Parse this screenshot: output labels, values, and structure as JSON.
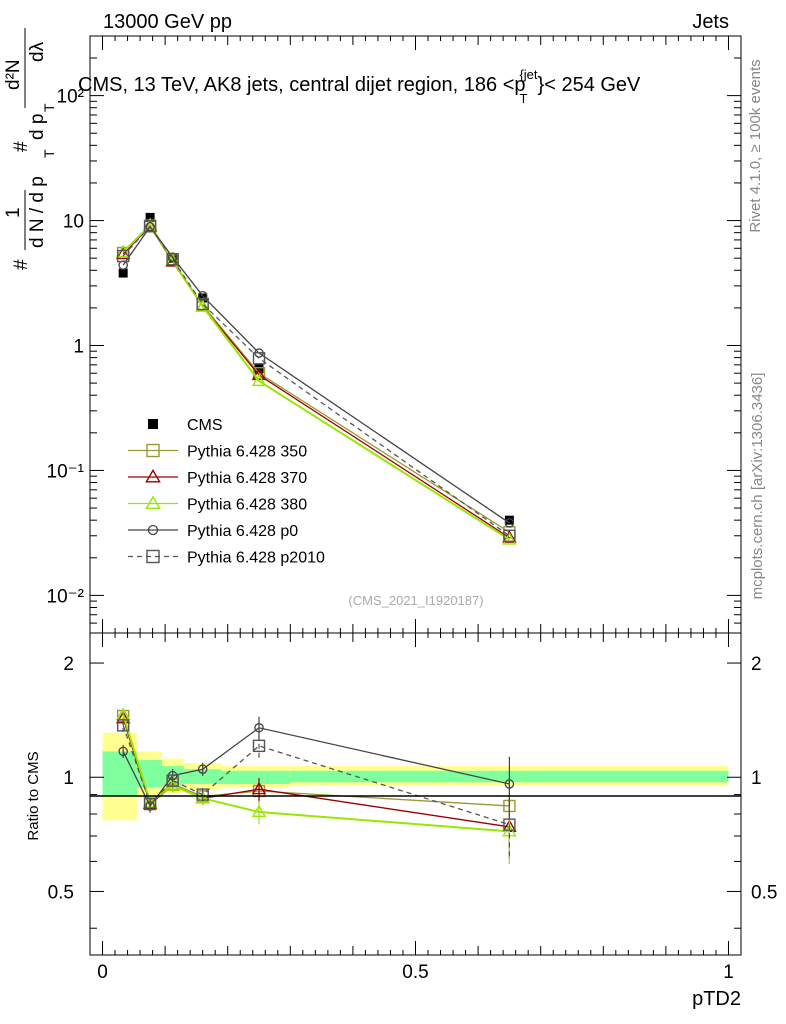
{
  "header": {
    "left": "13000 GeV pp",
    "right": "Jets"
  },
  "side": {
    "rivet": "Rivet 4.1.0, ≥ 100k events",
    "mcplots": "mcplots.cern.ch [arXiv:1306.3436]"
  },
  "colors": {
    "cms": "#000000",
    "p350": "#999933",
    "p370": "#990000",
    "p380": "#99e600",
    "p0": "#444444",
    "p2010": "#555555",
    "band_stat": "#80ff9f",
    "band_total": "#ffff90"
  },
  "chart_data": [
    {
      "type": "scatter",
      "panel": "main",
      "title": "CMS, 13 TeV, AK8 jets, central dijet region, 186 <p_T^{jet}< 254 GeV",
      "title_parts": [
        "CMS, 13 TeV, AK8 jets, central dijet region, 186 <p",
        "T",
        "{jet",
        "}< 254 GeV"
      ],
      "ylabel_parts": [
        "#",
        "1",
        "d N / d p",
        "T",
        "#",
        "d p",
        "T",
        "d²N",
        "dλ"
      ],
      "xlabel": "pTD2",
      "watermark": "(CMS_2021_I1920187)",
      "xlim": [
        -0.02,
        1.02
      ],
      "ylim": [
        0.005,
        300
      ],
      "yscale": "log",
      "ytick_labels": [
        "10⁻²",
        "10⁻¹",
        "1",
        "10",
        "10²"
      ],
      "xtick_labels": [
        "0",
        "0.5",
        "1"
      ],
      "x": [
        0.033,
        0.076,
        0.112,
        0.16,
        0.25,
        0.65
      ],
      "series": [
        {
          "name": "CMS",
          "marker": "filled-square",
          "values": [
            3.8,
            10.6,
            5.0,
            2.4,
            0.65,
            0.04
          ]
        },
        {
          "name": "Pythia 6.428 350",
          "marker": "open-square",
          "line": "solid",
          "values": [
            5.5,
            9.1,
            4.8,
            2.1,
            0.6,
            0.032
          ]
        },
        {
          "name": "Pythia 6.428 370",
          "marker": "open-triangle",
          "line": "solid",
          "values": [
            5.4,
            9.0,
            4.7,
            2.05,
            0.58,
            0.029
          ]
        },
        {
          "name": "Pythia 6.428 380",
          "marker": "open-triangle",
          "line": "solid",
          "values": [
            5.6,
            9.2,
            4.8,
            2.05,
            0.52,
            0.028
          ]
        },
        {
          "name": "Pythia 6.428 p0",
          "marker": "open-circle",
          "line": "solid",
          "values": [
            4.4,
            8.9,
            5.1,
            2.5,
            0.87,
            0.038
          ]
        },
        {
          "name": "Pythia 6.428 p2010",
          "marker": "open-square",
          "line": "dashed",
          "values": [
            5.2,
            9.0,
            4.9,
            2.15,
            0.79,
            0.03
          ]
        }
      ]
    },
    {
      "type": "line",
      "panel": "ratio",
      "ylabel": "Ratio to CMS",
      "xlabel": "pTD2",
      "xlim": [
        -0.02,
        1.02
      ],
      "ylim": [
        0.34,
        2.4
      ],
      "yscale": "log",
      "ytick_labels": [
        "0.5",
        "1",
        "2"
      ],
      "xtick_labels": [
        "0",
        "0.5",
        "1"
      ],
      "x": [
        0.033,
        0.076,
        0.112,
        0.16,
        0.25,
        0.65
      ],
      "band_edges": [
        0.0,
        0.055,
        0.095,
        0.13,
        0.19,
        0.3,
        1.0
      ],
      "stat_band": [
        [
          0.89,
          1.17
        ],
        [
          0.94,
          1.11
        ],
        [
          0.95,
          1.07
        ],
        [
          0.96,
          1.05
        ],
        [
          0.96,
          1.04
        ],
        [
          0.97,
          1.04
        ]
      ],
      "total_band": [
        [
          0.77,
          1.31
        ],
        [
          0.88,
          1.17
        ],
        [
          0.91,
          1.12
        ],
        [
          0.93,
          1.09
        ],
        [
          0.94,
          1.07
        ],
        [
          0.95,
          1.07
        ]
      ],
      "series": [
        {
          "name": "Pythia 6.428 350",
          "values": [
            1.45,
            0.86,
            0.96,
            0.89,
            0.92,
            0.84
          ]
        },
        {
          "name": "Pythia 6.428 370",
          "values": [
            1.43,
            0.85,
            0.95,
            0.88,
            0.93,
            0.74
          ]
        },
        {
          "name": "Pythia 6.428 380",
          "values": [
            1.46,
            0.86,
            0.95,
            0.88,
            0.81,
            0.72
          ]
        },
        {
          "name": "Pythia 6.428 p0",
          "values": [
            1.17,
            0.84,
            1.01,
            1.05,
            1.35,
            0.96
          ]
        },
        {
          "name": "Pythia 6.428 p2010",
          "values": [
            1.37,
            0.85,
            0.98,
            0.9,
            1.21,
            0.75
          ]
        }
      ]
    }
  ]
}
